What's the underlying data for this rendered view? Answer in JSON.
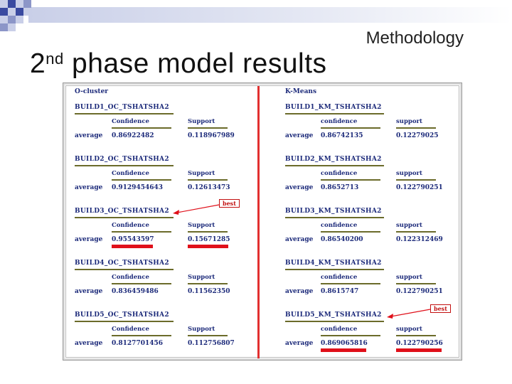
{
  "slide": {
    "section": "Methodology",
    "title_main": "2",
    "title_sup": "nd",
    "title_rest": " phase model results"
  },
  "left": {
    "heading": "O-cluster",
    "blocks": [
      {
        "name": "BUILD1_OC_TSHATSHA2",
        "conf_label": "Confidence",
        "supp_label": "Support",
        "avg_label": "average",
        "confidence": "0.86922482",
        "support": "0.118967989"
      },
      {
        "name": "BUILD2_OC_TSHATSHA2",
        "conf_label": "Confidence",
        "supp_label": "Support",
        "avg_label": "average",
        "confidence": "0.9129454643",
        "support": "0.12613473"
      },
      {
        "name": "BUILD3_OC_TSHATSHA2",
        "conf_label": "Confidence",
        "supp_label": "Support",
        "avg_label": "average",
        "confidence": "0.95543597",
        "support": "0.15671285"
      },
      {
        "name": "BUILD4_OC_TSHATSHA2",
        "conf_label": "Confidence",
        "supp_label": "Support",
        "avg_label": "average",
        "confidence": "0.836459486",
        "support": "0.11562350"
      },
      {
        "name": "BUILD5_OC_TSHATSHA2",
        "conf_label": "Confidence",
        "supp_label": "Support",
        "avg_label": "average",
        "confidence": "0.8127701456",
        "support": "0.112756807"
      }
    ],
    "best_label": "best"
  },
  "right": {
    "heading": "K-Means",
    "blocks": [
      {
        "name": "BUILD1_KM_TSHATSHA2",
        "conf_label": "confidence",
        "supp_label": "support",
        "avg_label": "average",
        "confidence": "0.86742135",
        "support": "0.12279025"
      },
      {
        "name": "BUILD2_KM_TSHATSHA2",
        "conf_label": "confidence",
        "supp_label": "support",
        "avg_label": "average",
        "confidence": "0.8652713",
        "support": "0.122790251"
      },
      {
        "name": "BUILD3_KM_TSHATSHA2",
        "conf_label": "confidence",
        "supp_label": "support",
        "avg_label": "average",
        "confidence": "0.86540200",
        "support": "0.122312469"
      },
      {
        "name": "BUILD4_KM_TSHATSHA2",
        "conf_label": "confidence",
        "supp_label": "support",
        "avg_label": "average",
        "confidence": "0.8615747",
        "support": "0.122790251"
      },
      {
        "name": "BUILD5_KM_TSHATSHA2",
        "conf_label": "confidence",
        "supp_label": "support",
        "avg_label": "average",
        "confidence": "0.869065816",
        "support": "0.122790256"
      }
    ],
    "best_label": "best"
  },
  "colors": {
    "text": "#1c2a7a",
    "underline": "#6b6b2a",
    "highlight": "#e0101a",
    "divider": "#e23030",
    "deco_dark": "#3a4aa0",
    "deco_light": "#c9cfe8"
  }
}
